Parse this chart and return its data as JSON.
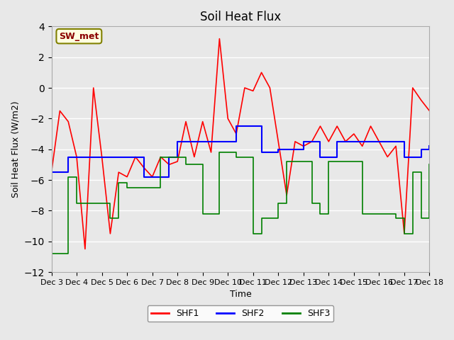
{
  "title": "Soil Heat Flux",
  "ylabel": "Soil Heat Flux (W/m2)",
  "xlabel": "Time",
  "ylim": [
    -12,
    4
  ],
  "yticks": [
    -12,
    -10,
    -8,
    -6,
    -4,
    -2,
    0,
    2,
    4
  ],
  "background_color": "#e8e8e8",
  "plot_bg_color": "#e8e8e8",
  "grid_color": "white",
  "legend_label": "SW_met",
  "series": [
    "SHF1",
    "SHF2",
    "SHF3"
  ],
  "colors": [
    "red",
    "blue",
    "green"
  ],
  "xtick_labels": [
    "Dec 3",
    "Dec 4",
    "Dec 5",
    "Dec 6",
    "Dec 7",
    "Dec 8",
    "Dec 9",
    "Dec 10",
    "Dec 11",
    "Dec 12",
    "Dec 13",
    "Dec 14",
    "Dec 15",
    "Dec 16",
    "Dec 17",
    "Dec 18"
  ],
  "shf1": [
    -5.5,
    -1.5,
    -2.2,
    -4.5,
    -10.5,
    0.0,
    -4.5,
    -9.5,
    -5.5,
    -5.8,
    -4.5,
    -5.2,
    -5.8,
    -4.5,
    -5.0,
    -4.8,
    -2.2,
    -4.5,
    -2.2,
    -4.2,
    3.2,
    -2.0,
    -3.0,
    0.0,
    -0.2,
    1.0,
    0.0,
    -3.5,
    -7.0,
    -3.5,
    -3.8,
    -3.5,
    -2.5,
    -3.5,
    -2.5,
    -3.5,
    -3.0,
    -3.8,
    -2.5,
    -3.5,
    -4.5,
    -3.8,
    -9.5,
    0.0,
    -0.8,
    -1.5
  ],
  "shf2": [
    -5.5,
    -5.5,
    -4.5,
    -4.5,
    -4.5,
    -4.5,
    -4.5,
    -4.5,
    -4.5,
    -4.5,
    -4.5,
    -5.8,
    -5.8,
    -5.8,
    -4.5,
    -3.5,
    -3.5,
    -3.5,
    -3.5,
    -3.5,
    -3.5,
    -3.5,
    -2.5,
    -2.5,
    -2.5,
    -4.2,
    -4.2,
    -4.0,
    -4.0,
    -4.0,
    -3.5,
    -3.5,
    -4.5,
    -4.5,
    -3.5,
    -3.5,
    -3.5,
    -3.5,
    -3.5,
    -3.5,
    -3.5,
    -3.5,
    -4.5,
    -4.5,
    -4.0,
    -3.8
  ],
  "shf3": [
    -10.8,
    -10.8,
    -5.8,
    -7.5,
    -7.5,
    -7.5,
    -7.5,
    -8.5,
    -6.2,
    -6.5,
    -6.5,
    -6.5,
    -6.5,
    -4.5,
    -4.5,
    -4.5,
    -5.0,
    -5.0,
    -8.2,
    -8.2,
    -4.2,
    -4.2,
    -4.5,
    -4.5,
    -9.5,
    -8.5,
    -8.5,
    -7.5,
    -4.8,
    -4.8,
    -4.8,
    -7.5,
    -8.2,
    -4.8,
    -4.8,
    -4.8,
    -4.8,
    -8.2,
    -8.2,
    -8.2,
    -8.2,
    -8.5,
    -9.5,
    -5.5,
    -8.5,
    -5.0
  ]
}
